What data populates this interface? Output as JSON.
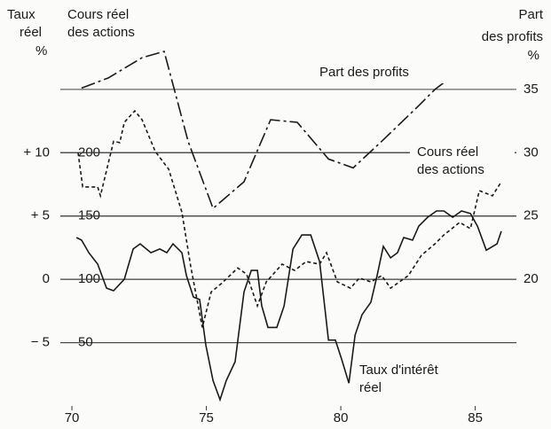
{
  "chart_data": {
    "type": "line",
    "y_label": [
      "Taux",
      "réel"
    ],
    "y_unit": "%",
    "y3_label": [
      "Cours réel",
      "des actions"
    ],
    "y2_label": [
      "Part",
      "des profits"
    ],
    "y2_unit": "%",
    "xlim": [
      69.57,
      86.53
    ],
    "xticks": [
      70,
      75,
      80,
      85
    ],
    "ylim": [
      -10,
      18
    ],
    "yticks": [
      {
        "value": -5,
        "label": "− 5"
      },
      0,
      {
        "value": 5,
        "label": "+ 5"
      },
      {
        "value": 10,
        "label": "+ 10"
      }
    ],
    "y3lim": [
      0,
      280
    ],
    "y3ticks": [
      50,
      100,
      150,
      200
    ],
    "y2lim": [
      10,
      38
    ],
    "y2ticks": [
      20,
      25,
      30,
      35
    ],
    "grid": true,
    "series": [
      {
        "color": "#1a1a1a",
        "dash": "solid",
        "axis": "y",
        "x": [
          70.17,
          70.36,
          70.63,
          70.96,
          71.29,
          71.55,
          71.95,
          72.28,
          72.54,
          72.94,
          73.27,
          73.53,
          73.76,
          74.09,
          74.26,
          74.52,
          74.75,
          74.98,
          75.25,
          75.51,
          75.74,
          76.07,
          76.4,
          76.67,
          76.9,
          77.06,
          77.29,
          77.62,
          77.89,
          78.22,
          78.55,
          78.88,
          79.21,
          79.54,
          79.8,
          80.03,
          80.3,
          80.53,
          80.79,
          81.12,
          81.35,
          81.58,
          81.85,
          82.11,
          82.34,
          82.67,
          82.9,
          83.23,
          83.56,
          83.83,
          84.16,
          84.49,
          84.82,
          85.08,
          85.41,
          85.81,
          85.97
        ],
        "values": [
          3.3,
          3.1,
          2.1,
          1.2,
          -0.7,
          -0.9,
          0,
          2.4,
          2.8,
          2.1,
          2.4,
          2.1,
          2.8,
          2.1,
          0.3,
          -1.4,
          -1.6,
          -5.2,
          -8.0,
          -9.5,
          -8.0,
          -6.5,
          -1.0,
          0.7,
          0.7,
          -2.1,
          -3.8,
          -3.8,
          -2.1,
          2.4,
          3.5,
          3.5,
          1.4,
          -4.8,
          -4.8,
          -6.3,
          -8.2,
          -4.4,
          -2.8,
          -1.8,
          0.3,
          2.6,
          1.7,
          2.1,
          3.3,
          3.1,
          4.2,
          4.9,
          5.4,
          5.4,
          4.9,
          5.4,
          5.2,
          4.2,
          2.3,
          2.8,
          3.8
        ]
      },
      {
        "color": "#1a1a1a",
        "dash": "dashed",
        "axis": "y3",
        "x": [
          70.23,
          70.4,
          70.96,
          71.06,
          71.55,
          71.78,
          71.95,
          72.34,
          72.61,
          73.1,
          73.6,
          74.09,
          74.42,
          74.85,
          75.18,
          75.58,
          76.17,
          76.5,
          76.9,
          77.23,
          77.82,
          78.28,
          78.71,
          79.21,
          79.47,
          79.87,
          80.36,
          80.69,
          81.12,
          81.52,
          81.85,
          82.51,
          83,
          83.5,
          83.83,
          84.42,
          84.82,
          85.15,
          85.64,
          85.97
        ],
        "values": [
          200,
          173,
          173,
          166,
          209,
          208,
          224,
          233,
          226,
          201,
          187,
          153,
          110,
          62,
          90,
          97,
          109,
          104,
          79,
          98,
          112,
          107,
          114,
          112,
          121,
          98,
          93,
          101,
          98,
          103,
          93,
          103,
          119,
          128,
          135,
          145,
          140,
          170,
          166,
          177
        ]
      },
      {
        "color": "#1a1a1a",
        "dash": "dashdot",
        "axis": "y2",
        "x": [
          70.36,
          71.35,
          72.61,
          73.43,
          74.32,
          75.25,
          76.4,
          77.39,
          78.38,
          79.54,
          80.46,
          81.52,
          82.84,
          83.5,
          84.49
        ],
        "values": [
          35.1,
          35.9,
          37.5,
          38.0,
          30.9,
          25.6,
          27.7,
          32.6,
          32.4,
          29.5,
          28.8,
          30.9,
          33.6,
          35.0,
          36.6
        ]
      }
    ],
    "annotations": [
      {
        "lines": [
          "Part des profits"
        ]
      },
      {
        "lines": [
          "Cours réel",
          "des actions"
        ]
      },
      {
        "lines": [
          "Taux d'intérêt",
          "réel"
        ]
      }
    ]
  }
}
